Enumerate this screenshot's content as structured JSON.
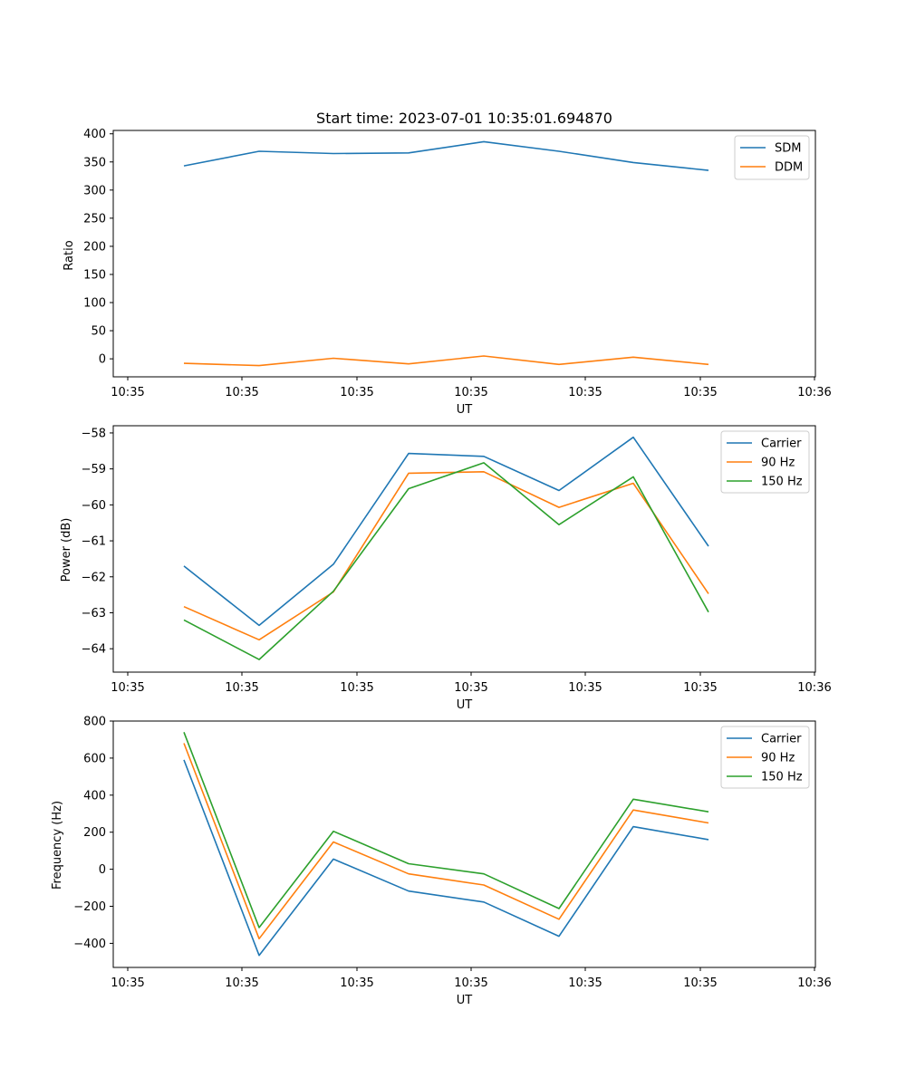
{
  "chart_data": [
    {
      "type": "line",
      "title": "Start time: 2023-07-01 10:35:01.694870",
      "xlabel": "UT",
      "ylabel": "Ratio",
      "x_tick_labels": [
        "10:35",
        "10:35",
        "10:35",
        "10:35",
        "10:35",
        "10:35",
        "10:36"
      ],
      "y_ticks": [
        0,
        50,
        100,
        150,
        200,
        250,
        300,
        350,
        400
      ],
      "ylim": [
        -32,
        406
      ],
      "legend_position": "top-right",
      "series": [
        {
          "name": "SDM",
          "color": "#1f77b4",
          "values": [
            343,
            369,
            365,
            366,
            386,
            369,
            349,
            335
          ]
        },
        {
          "name": "DDM",
          "color": "#ff7f0e",
          "values": [
            -8,
            -12,
            1,
            -9,
            5,
            -10,
            3,
            -10
          ]
        }
      ]
    },
    {
      "type": "line",
      "title": "",
      "xlabel": "UT",
      "ylabel": "Power (dB)",
      "x_tick_labels": [
        "10:35",
        "10:35",
        "10:35",
        "10:35",
        "10:35",
        "10:35",
        "10:36"
      ],
      "y_ticks": [
        -64,
        -63,
        -62,
        -61,
        -60,
        -59,
        -58
      ],
      "ylim": [
        -64.65,
        -57.8
      ],
      "legend_position": "top-right",
      "series": [
        {
          "name": "Carrier",
          "color": "#1f77b4",
          "values": [
            -61.7,
            -63.35,
            -61.65,
            -58.57,
            -58.65,
            -59.6,
            -58.12,
            -61.15
          ]
        },
        {
          "name": "90 Hz",
          "color": "#ff7f0e",
          "values": [
            -62.83,
            -63.75,
            -62.42,
            -59.12,
            -59.08,
            -60.07,
            -59.4,
            -62.47
          ]
        },
        {
          "name": "150 Hz",
          "color": "#2ca02c",
          "values": [
            -63.2,
            -64.3,
            -62.4,
            -59.55,
            -58.83,
            -60.55,
            -59.22,
            -62.98
          ]
        }
      ]
    },
    {
      "type": "line",
      "title": "",
      "xlabel": "UT",
      "ylabel": "Frequency (Hz)",
      "x_tick_labels": [
        "10:35",
        "10:35",
        "10:35",
        "10:35",
        "10:35",
        "10:35",
        "10:36"
      ],
      "y_ticks": [
        -400,
        -200,
        0,
        200,
        400,
        600,
        800
      ],
      "ylim": [
        -530,
        800
      ],
      "legend_position": "top-right",
      "series": [
        {
          "name": "Carrier",
          "color": "#1f77b4",
          "values": [
            590,
            -465,
            55,
            -118,
            -177,
            -362,
            230,
            160
          ]
        },
        {
          "name": "90 Hz",
          "color": "#ff7f0e",
          "values": [
            680,
            -375,
            147,
            -25,
            -85,
            -270,
            320,
            250
          ]
        },
        {
          "name": "150 Hz",
          "color": "#2ca02c",
          "values": [
            740,
            -315,
            205,
            30,
            -25,
            -212,
            378,
            310
          ]
        }
      ]
    }
  ]
}
